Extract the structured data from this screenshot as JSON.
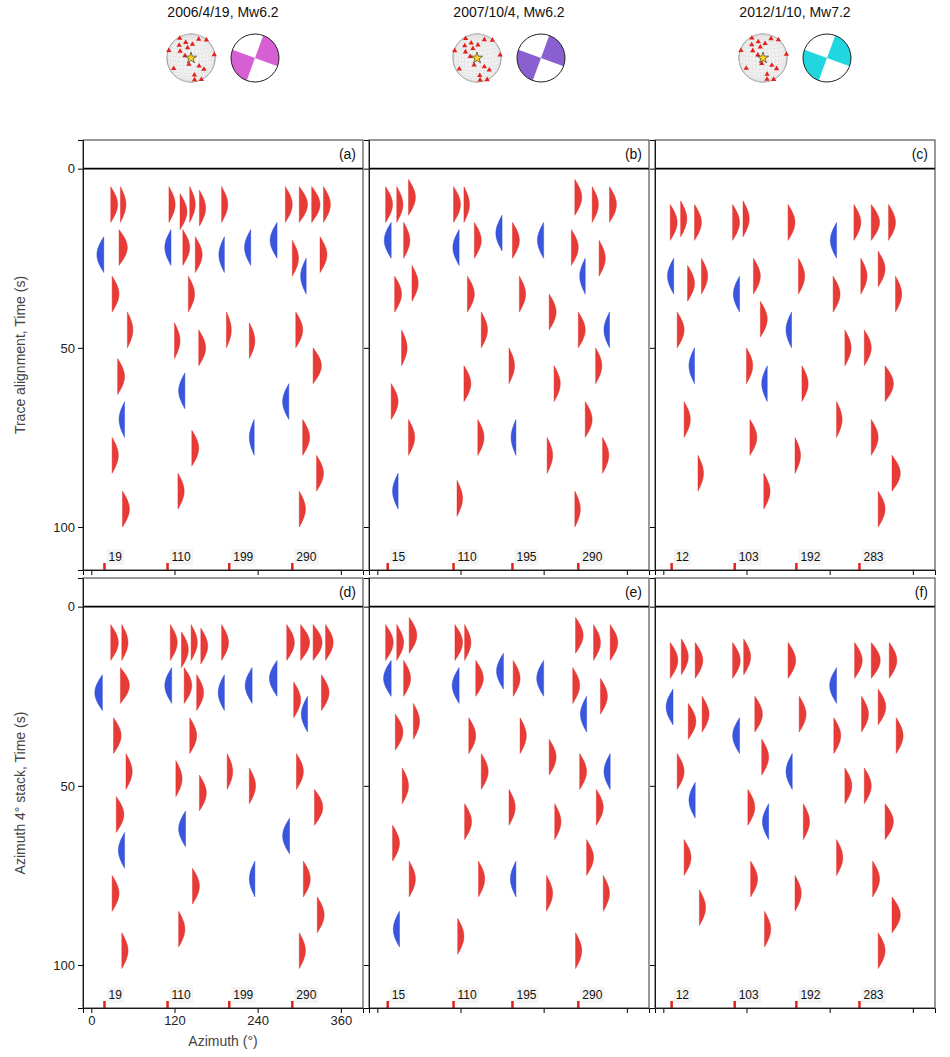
{
  "events": [
    {
      "title": "2006/4/19, Mw6.2",
      "color": "#d65fd3",
      "epicenter": [
        -80,
        10
      ]
    },
    {
      "title": "2007/10/4, Mw6.2",
      "color": "#8a5fcf",
      "epicenter": [
        -78,
        12
      ]
    },
    {
      "title": "2012/1/10, Mw7.2",
      "color": "#22d6df",
      "epicenter": [
        -82,
        8
      ]
    }
  ],
  "stations": [
    [
      -120,
      40
    ],
    [
      -100,
      50
    ],
    [
      -75,
      45
    ],
    [
      -60,
      -10
    ],
    [
      -45,
      -20
    ],
    [
      -70,
      -35
    ],
    [
      10,
      50
    ],
    [
      20,
      -20
    ],
    [
      -150,
      60
    ],
    [
      -110,
      25
    ],
    [
      -90,
      35
    ],
    [
      -85,
      -5
    ],
    [
      -40,
      60
    ],
    [
      0,
      10
    ],
    [
      -130,
      -20
    ],
    [
      -20,
      -60
    ],
    [
      30,
      40
    ],
    [
      -160,
      20
    ],
    [
      -65,
      -55
    ],
    [
      -95,
      15
    ]
  ],
  "chart_data": [
    {
      "type": "wiggle",
      "label": "(a)",
      "ylabel": "Trace alignment, Time (s)",
      "xlim": [
        -12,
        392
      ],
      "ylim": [
        -8,
        112
      ],
      "xticks": [
        0,
        120,
        240,
        360
      ],
      "yticks": [
        0,
        50,
        100
      ],
      "tick_labels": "y",
      "reference_time": 0,
      "colors": [
        "#e3201b",
        "#1f3fd8"
      ],
      "azimuths": [
        19,
        110,
        199,
        290
      ],
      "pulses": [
        [
          28,
          10,
          10
        ],
        [
          42,
          10,
          8
        ],
        [
          18,
          24,
          -10
        ],
        [
          40,
          22,
          12
        ],
        [
          30,
          35,
          10
        ],
        [
          52,
          45,
          8
        ],
        [
          38,
          58,
          10
        ],
        [
          48,
          70,
          -8
        ],
        [
          30,
          80,
          9
        ],
        [
          45,
          95,
          10
        ],
        [
          112,
          10,
          9
        ],
        [
          128,
          12,
          10
        ],
        [
          142,
          10,
          8
        ],
        [
          156,
          11,
          9
        ],
        [
          115,
          22,
          -9
        ],
        [
          132,
          22,
          10
        ],
        [
          150,
          24,
          10
        ],
        [
          140,
          35,
          9
        ],
        [
          120,
          48,
          8
        ],
        [
          155,
          50,
          10
        ],
        [
          135,
          62,
          -9
        ],
        [
          145,
          78,
          10
        ],
        [
          125,
          90,
          9
        ],
        [
          188,
          10,
          9
        ],
        [
          192,
          24,
          -8
        ],
        [
          195,
          45,
          7
        ],
        [
          230,
          22,
          -9
        ],
        [
          228,
          48,
          8
        ],
        [
          235,
          75,
          -7
        ],
        [
          268,
          20,
          -10
        ],
        [
          280,
          10,
          10
        ],
        [
          300,
          10,
          12
        ],
        [
          318,
          10,
          12
        ],
        [
          335,
          10,
          10
        ],
        [
          290,
          25,
          9
        ],
        [
          310,
          30,
          -8
        ],
        [
          330,
          24,
          10
        ],
        [
          295,
          45,
          10
        ],
        [
          320,
          55,
          12
        ],
        [
          285,
          65,
          -9
        ],
        [
          305,
          75,
          10
        ],
        [
          325,
          85,
          10
        ],
        [
          300,
          95,
          9
        ]
      ]
    },
    {
      "type": "wiggle",
      "label": "(b)",
      "xlim": [
        -12,
        392
      ],
      "ylim": [
        -8,
        112
      ],
      "xticks": [
        0,
        120,
        240,
        360
      ],
      "yticks": [
        0,
        50,
        100
      ],
      "tick_labels": false,
      "reference_time": 0,
      "colors": [
        "#e3201b",
        "#1f3fd8"
      ],
      "azimuths": [
        15,
        110,
        195,
        290
      ],
      "pulses": [
        [
          12,
          10,
          10
        ],
        [
          28,
          10,
          9
        ],
        [
          45,
          8,
          10
        ],
        [
          20,
          20,
          -10
        ],
        [
          38,
          20,
          9
        ],
        [
          25,
          35,
          10
        ],
        [
          50,
          32,
          9
        ],
        [
          35,
          50,
          8
        ],
        [
          20,
          65,
          10
        ],
        [
          45,
          75,
          9
        ],
        [
          30,
          90,
          -8
        ],
        [
          110,
          10,
          10
        ],
        [
          125,
          10,
          8
        ],
        [
          140,
          20,
          10
        ],
        [
          118,
          22,
          -9
        ],
        [
          130,
          35,
          10
        ],
        [
          150,
          45,
          9
        ],
        [
          125,
          60,
          10
        ],
        [
          145,
          75,
          9
        ],
        [
          115,
          92,
          8
        ],
        [
          180,
          18,
          -9
        ],
        [
          195,
          20,
          10
        ],
        [
          205,
          35,
          9
        ],
        [
          190,
          55,
          8
        ],
        [
          200,
          75,
          -7
        ],
        [
          240,
          20,
          -9
        ],
        [
          248,
          40,
          10
        ],
        [
          255,
          60,
          9
        ],
        [
          245,
          80,
          8
        ],
        [
          285,
          8,
          10
        ],
        [
          310,
          10,
          9
        ],
        [
          335,
          10,
          10
        ],
        [
          280,
          22,
          10
        ],
        [
          300,
          30,
          -8
        ],
        [
          320,
          25,
          9
        ],
        [
          290,
          45,
          10
        ],
        [
          315,
          55,
          9
        ],
        [
          335,
          45,
          -8
        ],
        [
          300,
          70,
          10
        ],
        [
          325,
          80,
          9
        ],
        [
          285,
          95,
          8
        ]
      ]
    },
    {
      "type": "wiggle",
      "label": "(c)",
      "xlim": [
        -12,
        392
      ],
      "ylim": [
        -8,
        112
      ],
      "xticks": [
        0,
        120,
        240,
        360
      ],
      "yticks": [
        0,
        50,
        100
      ],
      "tick_labels": false,
      "reference_time": 0,
      "colors": [
        "#e3201b",
        "#1f3fd8"
      ],
      "azimuths": [
        12,
        103,
        192,
        283
      ],
      "pulses": [
        [
          10,
          15,
          10
        ],
        [
          25,
          14,
          9
        ],
        [
          45,
          15,
          10
        ],
        [
          15,
          30,
          -9
        ],
        [
          35,
          32,
          10
        ],
        [
          55,
          30,
          9
        ],
        [
          20,
          45,
          10
        ],
        [
          45,
          55,
          -8
        ],
        [
          30,
          70,
          9
        ],
        [
          50,
          85,
          8
        ],
        [
          100,
          15,
          10
        ],
        [
          115,
          14,
          9
        ],
        [
          130,
          30,
          10
        ],
        [
          110,
          35,
          -9
        ],
        [
          140,
          42,
          10
        ],
        [
          120,
          55,
          9
        ],
        [
          150,
          60,
          -8
        ],
        [
          125,
          75,
          10
        ],
        [
          145,
          90,
          9
        ],
        [
          180,
          15,
          10
        ],
        [
          195,
          30,
          9
        ],
        [
          185,
          45,
          -8
        ],
        [
          200,
          60,
          9
        ],
        [
          190,
          80,
          8
        ],
        [
          250,
          20,
          -9
        ],
        [
          245,
          35,
          10
        ],
        [
          262,
          50,
          9
        ],
        [
          250,
          70,
          8
        ],
        [
          275,
          15,
          10
        ],
        [
          300,
          15,
          12
        ],
        [
          325,
          15,
          10
        ],
        [
          285,
          30,
          9
        ],
        [
          310,
          28,
          10
        ],
        [
          335,
          35,
          9
        ],
        [
          290,
          50,
          10
        ],
        [
          320,
          60,
          12
        ],
        [
          300,
          75,
          10
        ],
        [
          330,
          85,
          12
        ],
        [
          310,
          95,
          10
        ]
      ]
    },
    {
      "type": "wiggle",
      "label": "(d)",
      "ylabel": "Azimuth 4° stack, Time (s)",
      "xlabel": "Azimuth (°)",
      "xlim": [
        -12,
        392
      ],
      "ylim": [
        -8,
        112
      ],
      "xticks": [
        0,
        120,
        240,
        360
      ],
      "yticks": [
        0,
        50,
        100
      ],
      "tick_labels": true,
      "reference_time": 0,
      "colors": [
        "#e3201b",
        "#1f3fd8"
      ],
      "azimuths": [
        19,
        110,
        199,
        290
      ],
      "pulses": [
        [
          28,
          10,
          11
        ],
        [
          44,
          10,
          9
        ],
        [
          16,
          24,
          -11
        ],
        [
          42,
          22,
          13
        ],
        [
          32,
          36,
          11
        ],
        [
          50,
          46,
          9
        ],
        [
          36,
          58,
          11
        ],
        [
          48,
          68,
          -9
        ],
        [
          30,
          80,
          10
        ],
        [
          44,
          96,
          9
        ],
        [
          114,
          10,
          10
        ],
        [
          130,
          12,
          10
        ],
        [
          144,
          10,
          9
        ],
        [
          158,
          11,
          10
        ],
        [
          116,
          22,
          -10
        ],
        [
          134,
          22,
          11
        ],
        [
          152,
          24,
          10
        ],
        [
          142,
          36,
          10
        ],
        [
          122,
          48,
          9
        ],
        [
          156,
          52,
          10
        ],
        [
          136,
          62,
          -10
        ],
        [
          146,
          78,
          10
        ],
        [
          126,
          90,
          9
        ],
        [
          188,
          10,
          10
        ],
        [
          192,
          24,
          -9
        ],
        [
          196,
          46,
          8
        ],
        [
          232,
          22,
          -10
        ],
        [
          228,
          50,
          9
        ],
        [
          236,
          76,
          -8
        ],
        [
          268,
          20,
          -11
        ],
        [
          282,
          10,
          11
        ],
        [
          302,
          10,
          13
        ],
        [
          320,
          10,
          13
        ],
        [
          338,
          10,
          11
        ],
        [
          292,
          26,
          10
        ],
        [
          312,
          30,
          -9
        ],
        [
          332,
          24,
          11
        ],
        [
          296,
          46,
          10
        ],
        [
          322,
          56,
          12
        ],
        [
          286,
          64,
          -10
        ],
        [
          306,
          76,
          10
        ],
        [
          326,
          86,
          10
        ],
        [
          300,
          96,
          9
        ]
      ]
    },
    {
      "type": "wiggle",
      "label": "(e)",
      "xlim": [
        -12,
        392
      ],
      "ylim": [
        -8,
        112
      ],
      "xticks": [
        0,
        120,
        240,
        360
      ],
      "yticks": [
        0,
        50,
        100
      ],
      "tick_labels": false,
      "reference_time": 0,
      "colors": [
        "#e3201b",
        "#1f3fd8"
      ],
      "azimuths": [
        15,
        110,
        195,
        290
      ],
      "pulses": [
        [
          12,
          10,
          11
        ],
        [
          28,
          10,
          10
        ],
        [
          46,
          8,
          11
        ],
        [
          20,
          20,
          -11
        ],
        [
          38,
          20,
          10
        ],
        [
          26,
          35,
          11
        ],
        [
          52,
          32,
          9
        ],
        [
          36,
          50,
          9
        ],
        [
          22,
          66,
          10
        ],
        [
          46,
          76,
          9
        ],
        [
          32,
          90,
          -9
        ],
        [
          112,
          10,
          11
        ],
        [
          126,
          10,
          9
        ],
        [
          142,
          20,
          11
        ],
        [
          118,
          22,
          -10
        ],
        [
          132,
          36,
          10
        ],
        [
          150,
          46,
          10
        ],
        [
          126,
          60,
          10
        ],
        [
          146,
          76,
          9
        ],
        [
          116,
          92,
          9
        ],
        [
          182,
          18,
          -10
        ],
        [
          196,
          20,
          10
        ],
        [
          206,
          36,
          9
        ],
        [
          190,
          56,
          9
        ],
        [
          200,
          76,
          -8
        ],
        [
          240,
          20,
          -10
        ],
        [
          248,
          42,
          10
        ],
        [
          256,
          60,
          9
        ],
        [
          244,
          80,
          9
        ],
        [
          286,
          8,
          11
        ],
        [
          312,
          10,
          10
        ],
        [
          336,
          10,
          11
        ],
        [
          282,
          22,
          10
        ],
        [
          302,
          30,
          -9
        ],
        [
          322,
          25,
          10
        ],
        [
          292,
          46,
          10
        ],
        [
          316,
          56,
          10
        ],
        [
          336,
          46,
          -9
        ],
        [
          302,
          70,
          10
        ],
        [
          326,
          80,
          9
        ],
        [
          286,
          96,
          9
        ]
      ]
    },
    {
      "type": "wiggle",
      "label": "(f)",
      "xlim": [
        -12,
        392
      ],
      "ylim": [
        -8,
        112
      ],
      "xticks": [
        0,
        120,
        240,
        360
      ],
      "yticks": [
        0,
        50,
        100
      ],
      "tick_labels": false,
      "reference_time": 0,
      "colors": [
        "#e3201b",
        "#1f3fd8"
      ],
      "azimuths": [
        12,
        103,
        192,
        283
      ],
      "pulses": [
        [
          10,
          15,
          11
        ],
        [
          26,
          14,
          10
        ],
        [
          46,
          15,
          11
        ],
        [
          14,
          28,
          -10
        ],
        [
          36,
          32,
          11
        ],
        [
          56,
          30,
          10
        ],
        [
          20,
          46,
          10
        ],
        [
          46,
          54,
          -9
        ],
        [
          30,
          70,
          10
        ],
        [
          52,
          84,
          9
        ],
        [
          100,
          15,
          11
        ],
        [
          116,
          14,
          10
        ],
        [
          132,
          30,
          11
        ],
        [
          110,
          36,
          -10
        ],
        [
          142,
          42,
          10
        ],
        [
          122,
          56,
          10
        ],
        [
          152,
          60,
          -9
        ],
        [
          126,
          76,
          10
        ],
        [
          146,
          90,
          9
        ],
        [
          180,
          15,
          11
        ],
        [
          196,
          30,
          10
        ],
        [
          186,
          46,
          -9
        ],
        [
          202,
          60,
          9
        ],
        [
          190,
          80,
          9
        ],
        [
          250,
          22,
          -10
        ],
        [
          246,
          36,
          10
        ],
        [
          262,
          50,
          10
        ],
        [
          250,
          70,
          9
        ],
        [
          276,
          15,
          11
        ],
        [
          300,
          15,
          13
        ],
        [
          326,
          15,
          11
        ],
        [
          286,
          30,
          10
        ],
        [
          310,
          28,
          11
        ],
        [
          336,
          36,
          10
        ],
        [
          290,
          50,
          10
        ],
        [
          320,
          60,
          12
        ],
        [
          302,
          76,
          10
        ],
        [
          330,
          86,
          12
        ],
        [
          310,
          96,
          10
        ]
      ]
    }
  ]
}
